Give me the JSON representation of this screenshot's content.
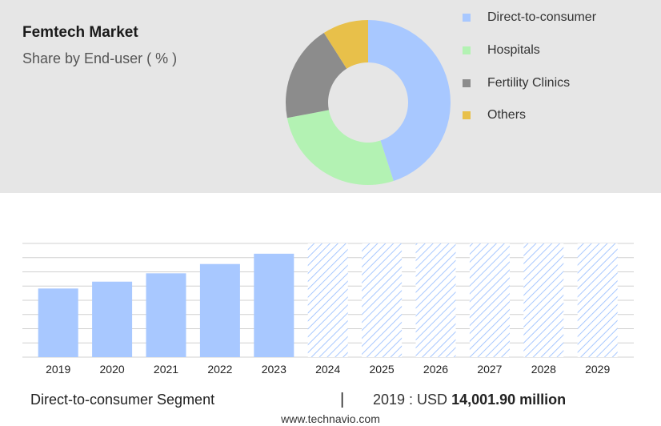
{
  "title": "Femtech Market",
  "subtitle": "Share by End-user ( % )",
  "colors": {
    "direct": "#a8c8ff",
    "hospitals": "#b3f2b3",
    "fertility": "#8c8c8c",
    "others": "#e8c04a",
    "bar": "#a8c8ff",
    "grid": "#d0d0d0"
  },
  "legend": [
    {
      "label": "Direct-to-consumer",
      "color": "#a8c8ff"
    },
    {
      "label": "Hospitals",
      "color": "#b3f2b3"
    },
    {
      "label": "Fertility Clinics",
      "color": "#8c8c8c"
    },
    {
      "label": "Others",
      "color": "#e8c04a"
    }
  ],
  "footer": {
    "segment": "Direct-to-consumer Segment",
    "separator": "|",
    "year_prefix": "2019 : USD",
    "amount": "14,001.90 million",
    "url": "www.technavio.com"
  },
  "chart_data": [
    {
      "type": "pie",
      "donut": true,
      "title": "Femtech Market",
      "subtitle": "Share by End-user ( % )",
      "labels": [
        "Direct-to-consumer",
        "Hospitals",
        "Fertility Clinics",
        "Others"
      ],
      "values": [
        45,
        27,
        19,
        9
      ],
      "colors": [
        "#a8c8ff",
        "#b3f2b3",
        "#8c8c8c",
        "#e8c04a"
      ],
      "legend_position": "right"
    },
    {
      "type": "bar",
      "categories": [
        "2019",
        "2020",
        "2021",
        "2022",
        "2023",
        "2024",
        "2025",
        "2026",
        "2027",
        "2028",
        "2029"
      ],
      "values": [
        14001.9,
        15400,
        17100,
        19000,
        21100,
        23200,
        23200,
        23200,
        23200,
        23200,
        23200
      ],
      "forecast_from": "2024",
      "forecast_style": "hatched",
      "ylim": [
        0,
        23200
      ],
      "grid": true,
      "y_axis_labels": false
    }
  ]
}
